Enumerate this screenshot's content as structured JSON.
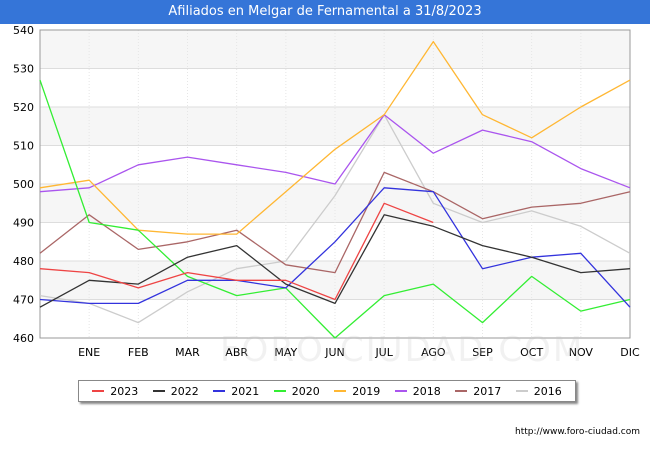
{
  "title": "Afiliados en Melgar de Fernamental a 31/8/2023",
  "footer": "http://www.foro-ciudad.com",
  "watermark": "FORO-CIUDAD.COM",
  "chart_data": {
    "type": "line",
    "title": "Afiliados en Melgar de Fernamental a 31/8/2023",
    "xlabel": "",
    "ylabel": "",
    "categories": [
      "",
      "ENE",
      "FEB",
      "MAR",
      "ABR",
      "MAY",
      "JUN",
      "JUL",
      "AGO",
      "SEP",
      "OCT",
      "NOV",
      "DIC"
    ],
    "ylim": [
      460,
      540
    ],
    "yticks": [
      460,
      470,
      480,
      490,
      500,
      510,
      520,
      530,
      540
    ],
    "grid": true,
    "legend_position": "bottom",
    "series": [
      {
        "name": "2023",
        "color": "#ee4444",
        "values": [
          478,
          477,
          473,
          477,
          475,
          475,
          470,
          495,
          490,
          null,
          null,
          null,
          null
        ]
      },
      {
        "name": "2022",
        "color": "#333333",
        "values": [
          468,
          475,
          474,
          481,
          484,
          474,
          469,
          492,
          489,
          484,
          481,
          477,
          478
        ]
      },
      {
        "name": "2021",
        "color": "#3333dd",
        "values": [
          470,
          469,
          469,
          475,
          475,
          473,
          485,
          499,
          498,
          478,
          481,
          482,
          468
        ]
      },
      {
        "name": "2020",
        "color": "#33ee33",
        "values": [
          527,
          490,
          488,
          476,
          471,
          473,
          460,
          471,
          474,
          464,
          476,
          467,
          470
        ]
      },
      {
        "name": "2019",
        "color": "#ffb733",
        "values": [
          499,
          501,
          488,
          487,
          487,
          498,
          509,
          518,
          537,
          518,
          512,
          520,
          527
        ]
      },
      {
        "name": "2018",
        "color": "#aa55ee",
        "values": [
          498,
          499,
          505,
          507,
          505,
          503,
          500,
          518,
          508,
          514,
          511,
          504,
          499
        ]
      },
      {
        "name": "2017",
        "color": "#aa6666",
        "values": [
          482,
          492,
          483,
          485,
          488,
          479,
          477,
          503,
          498,
          491,
          494,
          495,
          498
        ]
      },
      {
        "name": "2016",
        "color": "#cccccc",
        "values": [
          471,
          469,
          464,
          472,
          478,
          480,
          497,
          518,
          495,
          490,
          493,
          489,
          482
        ]
      }
    ]
  }
}
